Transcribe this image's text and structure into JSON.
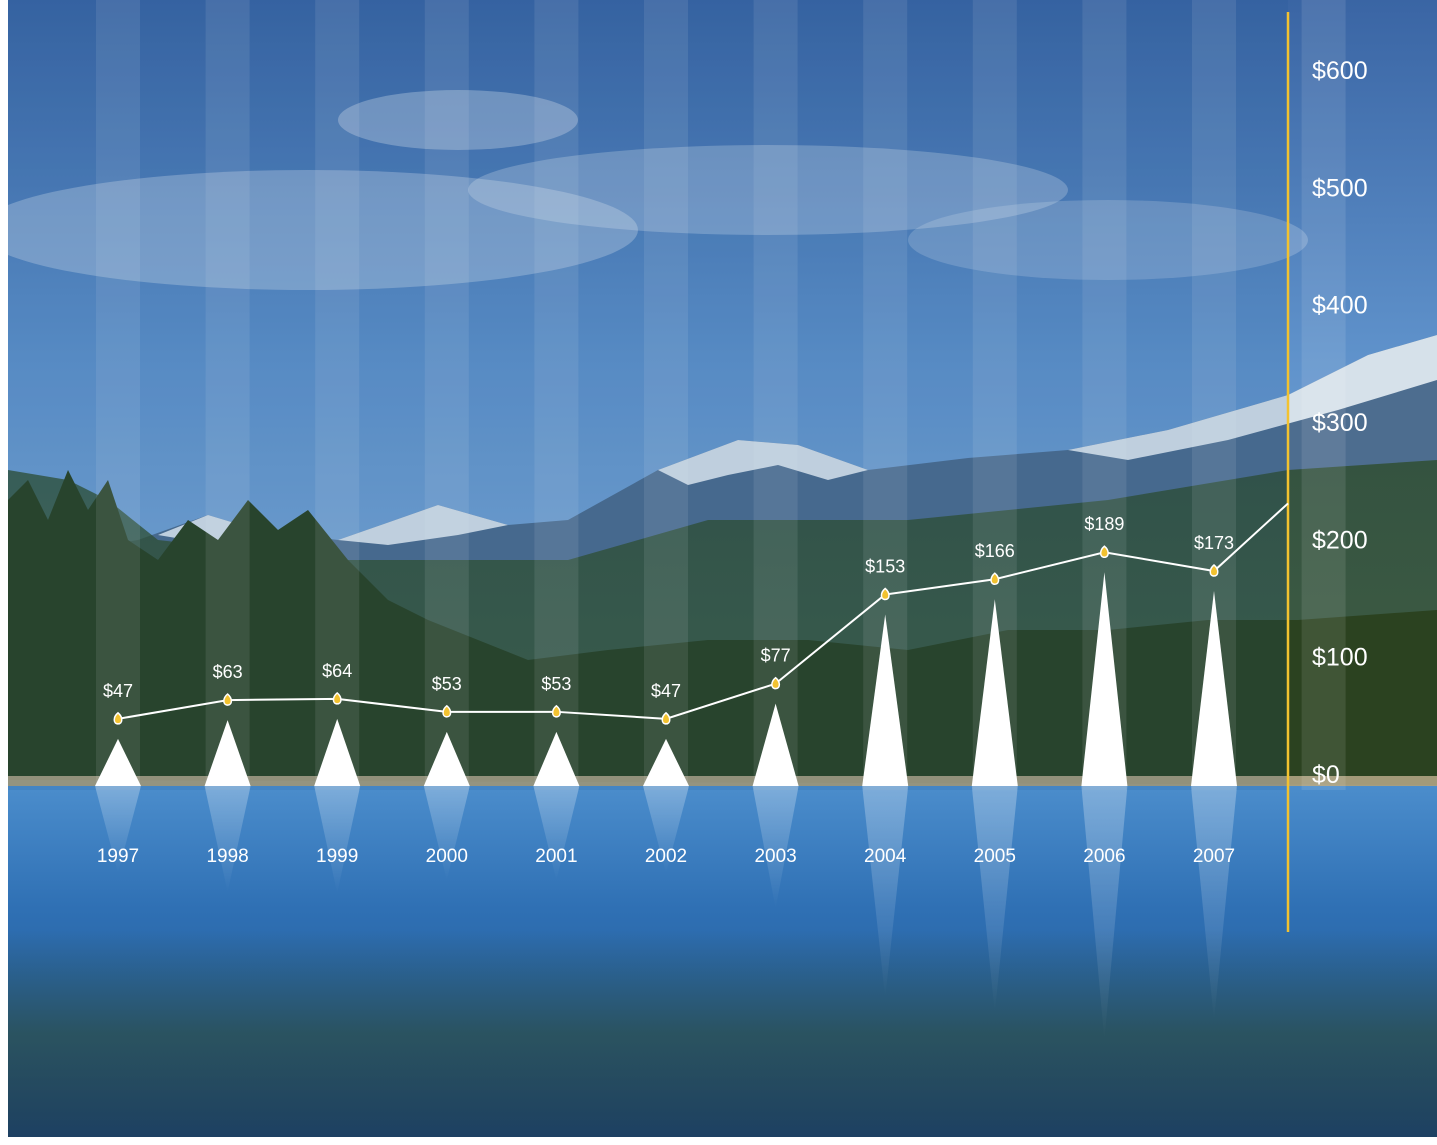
{
  "chart_data": {
    "type": "line",
    "categories": [
      "1997",
      "1998",
      "1999",
      "2000",
      "2001",
      "2002",
      "2003",
      "2004",
      "2005",
      "2006",
      "2007"
    ],
    "values": [
      47,
      63,
      64,
      53,
      53,
      47,
      77,
      153,
      166,
      189,
      173
    ],
    "value_labels": [
      "$47",
      "$63",
      "$64",
      "$53",
      "$53",
      "$47",
      "$77",
      "$153",
      "$166",
      "$189",
      "$173"
    ],
    "y_ticks": [
      0,
      100,
      200,
      300,
      400,
      500,
      600
    ],
    "y_tick_labels": [
      "$0",
      "$100",
      "$200",
      "$300",
      "$400",
      "$500",
      "$600"
    ],
    "ylim": [
      0,
      600
    ],
    "y_axis_side": "right",
    "line_continues_beyond_last_point": true,
    "marker_style": "triangle spikes with height proportional to value",
    "colors": {
      "axis": "#f2c230",
      "markers": "#f2c230",
      "line": "#ffffff",
      "spikes": "#ffffff",
      "labels": "#ffffff"
    }
  },
  "background": {
    "scene": "mountain-lake-landscape",
    "colors": {
      "sky_top": "#3d6aa8",
      "sky_mid": "#6b9bd0",
      "mountain": "#4b6a8c",
      "snow": "#e8eef5",
      "forest": "#2f4a25",
      "water": "#2e6fb5",
      "water_deep": "#1f4f8a"
    }
  }
}
